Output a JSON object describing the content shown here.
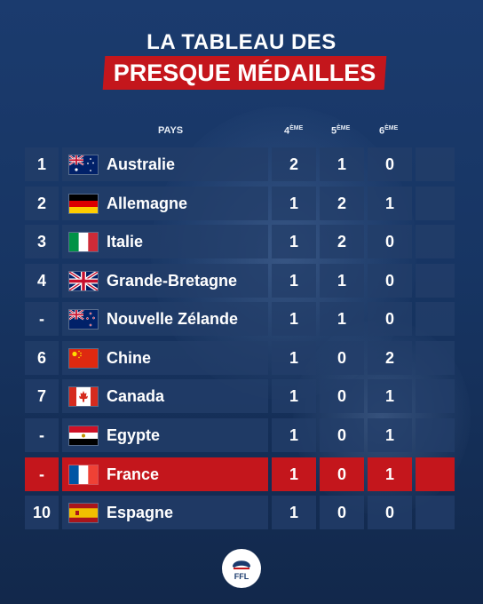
{
  "title": {
    "line1": "LA TABLEAU DES",
    "line2": "PRESQUE MÉDAILLES"
  },
  "headers": {
    "country": "PAYS",
    "p4": {
      "num": "4",
      "sup": "ÈME"
    },
    "p5": {
      "num": "5",
      "sup": "ÈME"
    },
    "p6": {
      "num": "6",
      "sup": "ÈME"
    }
  },
  "rows": [
    {
      "rank": "1",
      "country": "Australie",
      "flag": "australia-flag-icon",
      "v4": "2",
      "v5": "1",
      "v6": "0"
    },
    {
      "rank": "2",
      "country": "Allemagne",
      "flag": "germany-flag-icon",
      "v4": "1",
      "v5": "2",
      "v6": "1"
    },
    {
      "rank": "3",
      "country": "Italie",
      "flag": "italy-flag-icon",
      "v4": "1",
      "v5": "2",
      "v6": "0"
    },
    {
      "rank": "4",
      "country": "Grande-Bretagne",
      "flag": "uk-flag-icon",
      "v4": "1",
      "v5": "1",
      "v6": "0"
    },
    {
      "rank": "-",
      "country": "Nouvelle Zélande",
      "flag": "new-zealand-flag-icon",
      "v4": "1",
      "v5": "1",
      "v6": "0"
    },
    {
      "rank": "6",
      "country": "Chine",
      "flag": "china-flag-icon",
      "v4": "1",
      "v5": "0",
      "v6": "2"
    },
    {
      "rank": "7",
      "country": "Canada",
      "flag": "canada-flag-icon",
      "v4": "1",
      "v5": "0",
      "v6": "1"
    },
    {
      "rank": "-",
      "country": "Egypte",
      "flag": "egypt-flag-icon",
      "v4": "1",
      "v5": "0",
      "v6": "1"
    },
    {
      "rank": "-",
      "country": "France",
      "flag": "france-flag-icon",
      "v4": "1",
      "v5": "0",
      "v6": "1",
      "highlight": true
    },
    {
      "rank": "10",
      "country": "Espagne",
      "flag": "spain-flag-icon",
      "v4": "1",
      "v5": "0",
      "v6": "0"
    }
  ],
  "logo": {
    "text": "FFL",
    "icon": "ffl-helmet-logo-icon"
  },
  "colors": {
    "accent_red": "#c4161c",
    "row_bg": "#233e69",
    "bg": "#1b3b6e"
  }
}
